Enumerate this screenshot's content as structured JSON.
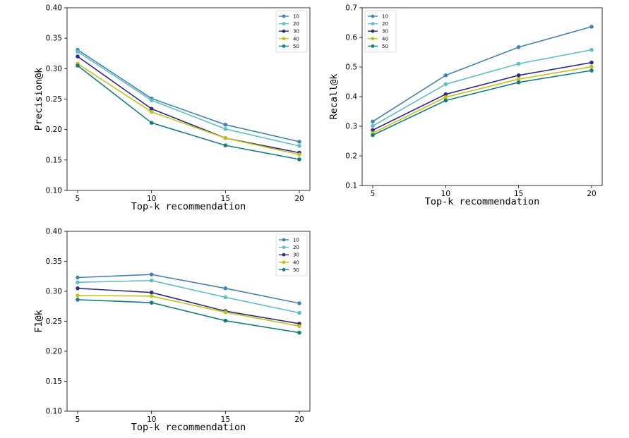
{
  "chart_data": [
    {
      "type": "line",
      "title": "",
      "xlabel": "Top-k recommendation",
      "ylabel": "Precision@k",
      "x": [
        5,
        10,
        15,
        20
      ],
      "xticks": [
        "5",
        "10",
        "15",
        "20"
      ],
      "ylim": [
        0.1,
        0.4
      ],
      "yticks": [
        "0.10",
        "0.15",
        "0.20",
        "0.25",
        "0.30",
        "0.35",
        "0.40"
      ],
      "grid": false,
      "legend_position": "top-right",
      "series": [
        {
          "name": "10",
          "color": "#4682b4",
          "values": [
            0.331,
            0.251,
            0.208,
            0.18
          ]
        },
        {
          "name": "20",
          "color": "#5bc0c7",
          "values": [
            0.328,
            0.248,
            0.201,
            0.173
          ]
        },
        {
          "name": "30",
          "color": "#2f2c8a",
          "values": [
            0.32,
            0.234,
            0.186,
            0.162
          ]
        },
        {
          "name": "40",
          "color": "#c4c21a",
          "values": [
            0.308,
            0.229,
            0.186,
            0.159
          ]
        },
        {
          "name": "50",
          "color": "#137d82",
          "values": [
            0.305,
            0.211,
            0.174,
            0.151
          ]
        }
      ]
    },
    {
      "type": "line",
      "title": "",
      "xlabel": "Top-k recommendation",
      "ylabel": "Recall@k",
      "x": [
        5,
        10,
        15,
        20
      ],
      "xticks": [
        "5",
        "10",
        "15",
        "20"
      ],
      "ylim": [
        0.1,
        0.7
      ],
      "yticks": [
        "0.1",
        "0.2",
        "0.3",
        "0.4",
        "0.5",
        "0.6",
        "0.7"
      ],
      "grid": false,
      "legend_position": "top-left",
      "series": [
        {
          "name": "10",
          "color": "#4682b4",
          "values": [
            0.316,
            0.472,
            0.567,
            0.636
          ]
        },
        {
          "name": "20",
          "color": "#5bc0c7",
          "values": [
            0.301,
            0.442,
            0.511,
            0.558
          ]
        },
        {
          "name": "30",
          "color": "#2f2c8a",
          "values": [
            0.287,
            0.408,
            0.472,
            0.515
          ]
        },
        {
          "name": "40",
          "color": "#c4c21a",
          "values": [
            0.277,
            0.398,
            0.459,
            0.501
          ]
        },
        {
          "name": "50",
          "color": "#137d82",
          "values": [
            0.27,
            0.387,
            0.448,
            0.488
          ]
        }
      ]
    },
    {
      "type": "line",
      "title": "",
      "xlabel": "Top-k recommendation",
      "ylabel": "F1@k",
      "x": [
        5,
        10,
        15,
        20
      ],
      "xticks": [
        "5",
        "10",
        "15",
        "20"
      ],
      "ylim": [
        0.1,
        0.4
      ],
      "yticks": [
        "0.10",
        "0.15",
        "0.20",
        "0.25",
        "0.30",
        "0.35",
        "0.40"
      ],
      "grid": false,
      "legend_position": "top-right",
      "series": [
        {
          "name": "10",
          "color": "#4682b4",
          "values": [
            0.323,
            0.328,
            0.305,
            0.28
          ]
        },
        {
          "name": "20",
          "color": "#5bc0c7",
          "values": [
            0.315,
            0.318,
            0.29,
            0.264
          ]
        },
        {
          "name": "30",
          "color": "#2f2c8a",
          "values": [
            0.305,
            0.298,
            0.267,
            0.246
          ]
        },
        {
          "name": "40",
          "color": "#c4c21a",
          "values": [
            0.293,
            0.292,
            0.265,
            0.242
          ]
        },
        {
          "name": "50",
          "color": "#137d82",
          "values": [
            0.286,
            0.281,
            0.251,
            0.231
          ]
        }
      ]
    }
  ]
}
